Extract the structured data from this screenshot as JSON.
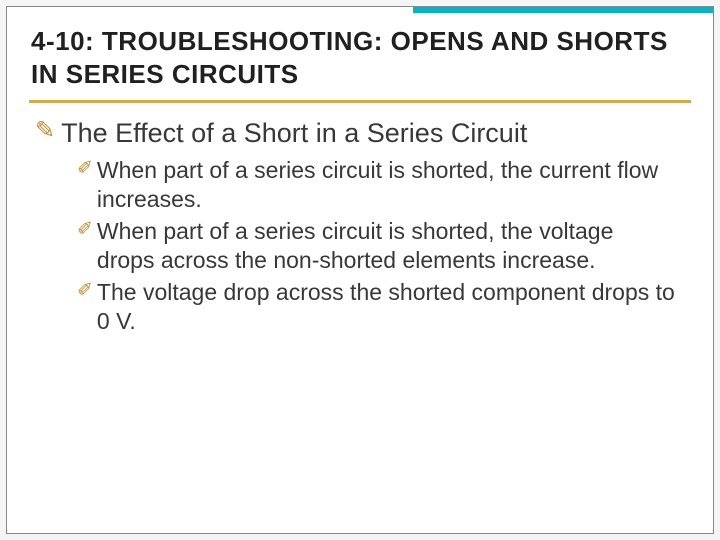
{
  "slide": {
    "heading": "4-10: TROUBLESHOOTING: OPENS AND SHORTS IN SERIES CIRCUITS",
    "bullet_glyph_lvl1": "✎",
    "bullet_glyph_lvl2": "✐",
    "accent_color": "#00b5cc",
    "rule_color": "#d4a94a",
    "bullet_color": "#c08a2a",
    "text_color": "#383838",
    "heading_color": "#202020",
    "heading_fontsize": 26,
    "lvl1_fontsize": 27,
    "lvl2_fontsize": 23,
    "lvl1": {
      "text": "The Effect of a Short in a Series Circuit",
      "children": [
        {
          "text": "When part of a series circuit is shorted, the current flow increases."
        },
        {
          "text": "When part of a series circuit is shorted, the voltage drops across the non-shorted elements increase."
        },
        {
          "text": "The voltage drop across the shorted component drops to 0 V."
        }
      ]
    }
  }
}
